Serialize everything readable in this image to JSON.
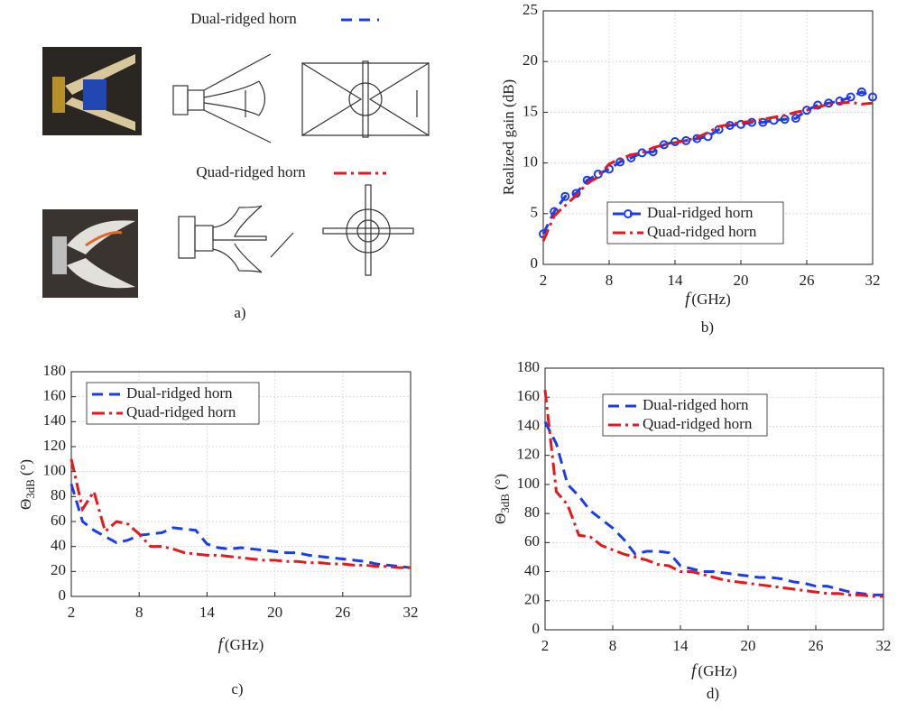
{
  "panel_a": {
    "dual_label": "Dual-ridged horn",
    "quad_label": "Quad-ridged horn",
    "caption": "a)"
  },
  "chart_data": [
    {
      "type": "line",
      "caption": "b)",
      "ylabel": "Realized gain (dB)",
      "xlabel_var": "f",
      "xlabel": "(GHz)",
      "x": [
        2,
        3,
        4,
        5,
        6,
        7,
        8,
        9,
        10,
        11,
        12,
        13,
        14,
        15,
        16,
        17,
        18,
        19,
        20,
        21,
        22,
        23,
        24,
        25,
        26,
        27,
        28,
        29,
        30,
        31,
        32
      ],
      "xlim": [
        2,
        32
      ],
      "xticks": [
        2,
        8,
        14,
        20,
        26,
        32
      ],
      "ylim": [
        0,
        25
      ],
      "yticks": [
        0,
        5,
        10,
        15,
        20,
        25
      ],
      "grid": true,
      "series": [
        {
          "name": "Dual-ridged horn",
          "color": "#1a3cf0",
          "linestyle": "dashed",
          "marker": "circle",
          "values": [
            3,
            5.2,
            6.7,
            7,
            8.3,
            8.9,
            9.4,
            10.1,
            10.5,
            11,
            11.1,
            11.8,
            12.1,
            12.2,
            12.4,
            12.6,
            13.3,
            13.7,
            13.8,
            14,
            14,
            14.2,
            14.3,
            14.4,
            15.2,
            15.7,
            15.9,
            16.1,
            16.5,
            17,
            16.5
          ]
        },
        {
          "name": "Quad-ridged horn",
          "color": "#e8171b",
          "linestyle": "dashdot",
          "values": [
            2.3,
            4.8,
            5.8,
            6.8,
            8,
            8.6,
            9.9,
            10.4,
            10.8,
            11,
            11.5,
            11.8,
            12,
            12.2,
            12.5,
            13,
            13.6,
            13.8,
            14,
            14.1,
            14.3,
            14.5,
            14.7,
            15,
            15.2,
            15.5,
            15.8,
            15.9,
            16,
            15.8,
            15.9
          ]
        }
      ]
    },
    {
      "type": "line",
      "caption": "c)",
      "ylabel": "Θ",
      "ylabel_sub": "3dB",
      "ylabel_unit": "(°)",
      "xlabel_var": "f",
      "xlabel": "(GHz)",
      "x": [
        2,
        3,
        4,
        5,
        6,
        7,
        8,
        9,
        10,
        11,
        12,
        13,
        14,
        15,
        16,
        17,
        18,
        19,
        20,
        21,
        22,
        23,
        24,
        25,
        26,
        27,
        28,
        29,
        30,
        31,
        32
      ],
      "xlim": [
        2,
        32
      ],
      "xticks": [
        2,
        8,
        14,
        20,
        26,
        32
      ],
      "ylim": [
        0,
        180
      ],
      "yticks": [
        0,
        20,
        40,
        60,
        80,
        100,
        120,
        140,
        160,
        180
      ],
      "grid": true,
      "series": [
        {
          "name": "Dual-ridged horn",
          "color": "#1a3cf0",
          "linestyle": "dashed",
          "values": [
            90,
            60,
            53,
            48,
            43,
            45,
            49,
            50,
            51,
            55,
            54,
            53,
            42,
            39,
            38,
            39,
            38,
            37,
            36,
            35,
            35,
            33,
            32,
            31,
            30,
            29,
            28,
            26,
            25,
            24,
            23
          ]
        },
        {
          "name": "Quad-ridged horn",
          "color": "#e8171b",
          "linestyle": "dashdot",
          "values": [
            110,
            70,
            84,
            52,
            60,
            58,
            50,
            40,
            40,
            38,
            35,
            34,
            33,
            33,
            32,
            31,
            30,
            29,
            29,
            28,
            28,
            27,
            27,
            26,
            26,
            25,
            25,
            24,
            24,
            23,
            23
          ]
        }
      ]
    },
    {
      "type": "line",
      "caption": "d)",
      "ylabel": "Θ",
      "ylabel_sub": "3dB",
      "ylabel_unit": "(°)",
      "xlabel_var": "f",
      "xlabel": "(GHz)",
      "x": [
        2,
        3,
        4,
        5,
        6,
        7,
        8,
        9,
        10,
        11,
        12,
        13,
        14,
        15,
        16,
        17,
        18,
        19,
        20,
        21,
        22,
        23,
        24,
        25,
        26,
        27,
        28,
        29,
        30,
        31,
        32
      ],
      "xlim": [
        2,
        32
      ],
      "xticks": [
        2,
        8,
        14,
        20,
        26,
        32
      ],
      "ylim": [
        0,
        180
      ],
      "yticks": [
        0,
        20,
        40,
        60,
        80,
        100,
        120,
        140,
        160,
        180
      ],
      "grid": true,
      "series": [
        {
          "name": "Dual-ridged horn",
          "color": "#1a3cf0",
          "linestyle": "dashed",
          "values": [
            143,
            128,
            100,
            92,
            82,
            76,
            70,
            62,
            52,
            54,
            54,
            53,
            44,
            42,
            40,
            40,
            39,
            38,
            37,
            36,
            36,
            35,
            33,
            32,
            30,
            30,
            28,
            26,
            25,
            24,
            24
          ]
        },
        {
          "name": "Quad-ridged horn",
          "color": "#e8171b",
          "linestyle": "dashdot",
          "values": [
            165,
            95,
            86,
            65,
            64,
            58,
            55,
            52,
            50,
            48,
            45,
            44,
            40,
            40,
            38,
            36,
            34,
            33,
            32,
            31,
            30,
            29,
            28,
            27,
            26,
            25,
            25,
            24,
            24,
            23,
            23
          ]
        }
      ]
    }
  ]
}
